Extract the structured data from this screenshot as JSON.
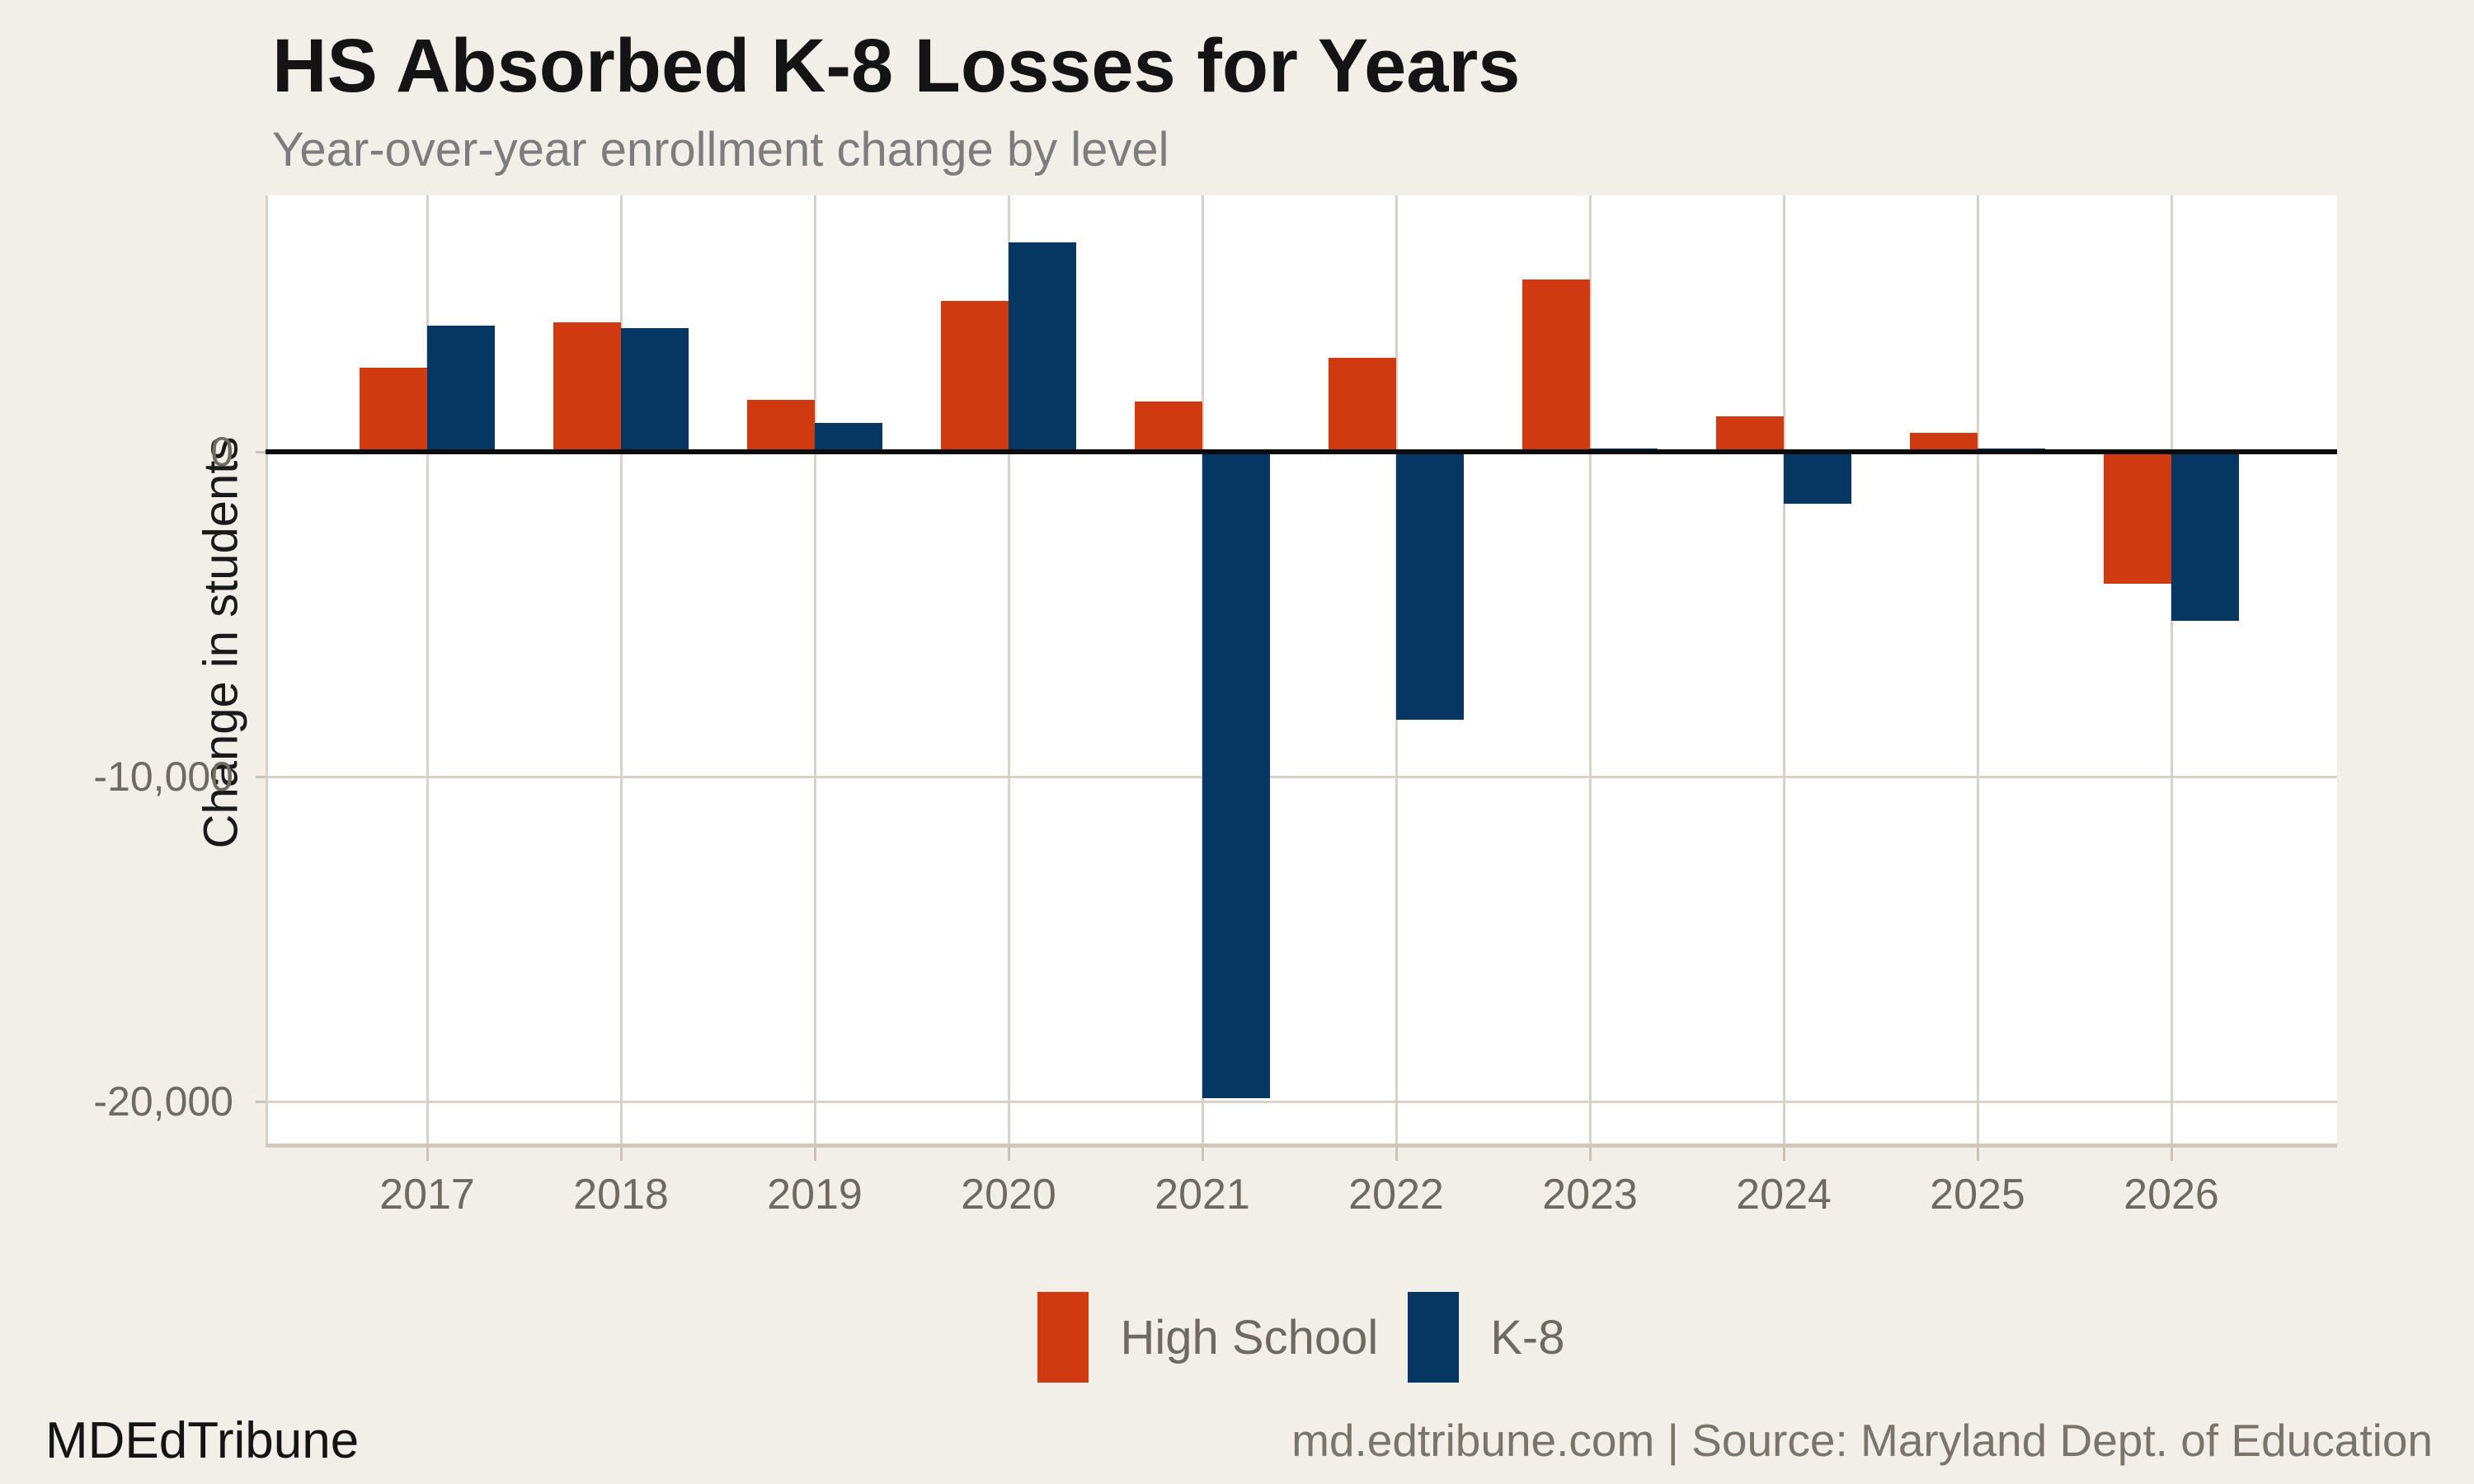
{
  "title": "HS Absorbed K-8 Losses for Years",
  "subtitle": "Year-over-year enrollment change by level",
  "footer": {
    "brand": "MDEdTribune",
    "source": "md.edtribune.com | Source: Maryland Dept. of Education"
  },
  "legend": {
    "items": [
      {
        "label": "High School",
        "color": "#d03a10"
      },
      {
        "label": "K-8",
        "color": "#063763"
      }
    ]
  },
  "chart_data": {
    "type": "bar",
    "title": "HS Absorbed K-8 Losses for Years",
    "subtitle": "Year-over-year enrollment change by level",
    "categories": [
      "2017",
      "2018",
      "2019",
      "2020",
      "2021",
      "2022",
      "2023",
      "2024",
      "2025",
      "2026"
    ],
    "series": [
      {
        "name": "High School",
        "color": "#d03a10",
        "values": [
          2600,
          4000,
          1600,
          4650,
          1550,
          2900,
          5300,
          1100,
          600,
          -4050
        ]
      },
      {
        "name": "K-8",
        "color": "#063763",
        "values": [
          3900,
          3800,
          900,
          6450,
          -19900,
          -8250,
          100,
          -1600,
          100,
          -5200
        ]
      }
    ],
    "xlabel": "",
    "ylabel": "Change in students",
    "ylim": [
      -21300,
      7900
    ],
    "yticks": [
      {
        "value": 0,
        "label": "0"
      },
      {
        "value": -10000,
        "label": "-10,000"
      },
      {
        "value": -20000,
        "label": "-20,000"
      }
    ],
    "grid": "on",
    "legend_position": "bottom",
    "zero_line": true
  }
}
